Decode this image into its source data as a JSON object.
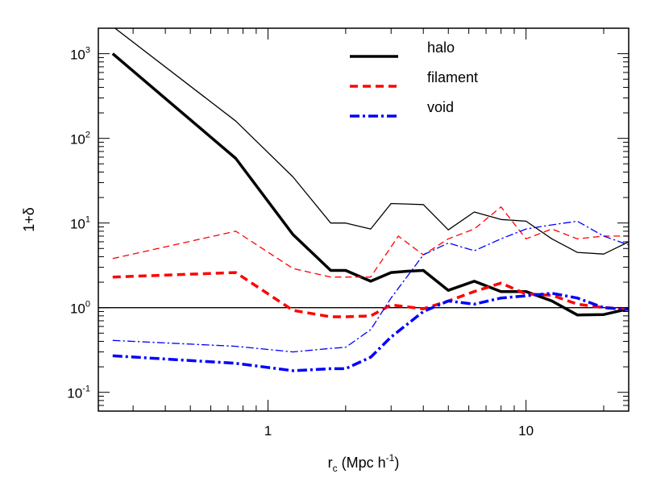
{
  "chart_data": {
    "type": "line",
    "title": "",
    "xlabel": {
      "base": "r",
      "sub": "c",
      "main": " (Mpc  h",
      "sup": "-1",
      "end": ")"
    },
    "ylabel": "1+δ",
    "xscale": "log",
    "yscale": "log",
    "xlim": [
      0.22,
      25
    ],
    "ylim": [
      0.06,
      2000
    ],
    "x_ticks": [
      {
        "value": 1,
        "label": "1"
      },
      {
        "value": 10,
        "label": "10"
      }
    ],
    "y_ticks": [
      {
        "value": 0.1,
        "base": "10",
        "exp": "-1"
      },
      {
        "value": 1,
        "base": "10",
        "exp": "0"
      },
      {
        "value": 10,
        "base": "10",
        "exp": "1"
      },
      {
        "value": 100,
        "base": "10",
        "exp": "2"
      },
      {
        "value": 1000,
        "base": "10",
        "exp": "3"
      }
    ],
    "reference_line": {
      "y": 1
    },
    "legend_position": "top-center",
    "series": [
      {
        "name": "halo",
        "style": "solid",
        "color": "#000000",
        "weight": "thick",
        "points": [
          [
            0.25,
            1000
          ],
          [
            0.75,
            58
          ],
          [
            1.25,
            7.3
          ],
          [
            1.75,
            2.75
          ],
          [
            2.0,
            2.75
          ],
          [
            2.5,
            2.05
          ],
          [
            3.0,
            2.6
          ],
          [
            3.5,
            2.7
          ],
          [
            4.0,
            2.75
          ],
          [
            5.0,
            1.6
          ],
          [
            6.3,
            2.05
          ],
          [
            8.0,
            1.55
          ],
          [
            10.0,
            1.55
          ],
          [
            12.6,
            1.2
          ],
          [
            15.8,
            0.82
          ],
          [
            20.0,
            0.83
          ],
          [
            25.0,
            0.97
          ]
        ]
      },
      {
        "name": "",
        "style": "solid",
        "color": "#000000",
        "weight": "thin",
        "points": [
          [
            0.25,
            2100
          ],
          [
            0.75,
            160
          ],
          [
            1.25,
            35
          ],
          [
            1.75,
            10
          ],
          [
            2.0,
            10
          ],
          [
            2.5,
            8.5
          ],
          [
            3.0,
            17
          ],
          [
            4.0,
            16.5
          ],
          [
            5.0,
            8.3
          ],
          [
            6.3,
            13.5
          ],
          [
            8.0,
            11
          ],
          [
            10.0,
            10.5
          ],
          [
            12.6,
            6.5
          ],
          [
            15.8,
            4.5
          ],
          [
            20.0,
            4.3
          ],
          [
            25.0,
            6
          ]
        ]
      },
      {
        "name": "filament",
        "style": "dashed",
        "color": "#ff0000",
        "weight": "thick",
        "points": [
          [
            0.25,
            2.3
          ],
          [
            0.75,
            2.6
          ],
          [
            1.25,
            0.93
          ],
          [
            1.75,
            0.78
          ],
          [
            2.0,
            0.78
          ],
          [
            2.5,
            0.8
          ],
          [
            3.0,
            1.08
          ],
          [
            4.0,
            0.97
          ],
          [
            5.0,
            1.2
          ],
          [
            6.3,
            1.55
          ],
          [
            8.0,
            1.95
          ],
          [
            10.0,
            1.45
          ],
          [
            12.6,
            1.4
          ],
          [
            15.8,
            1.1
          ],
          [
            20.0,
            1.0
          ],
          [
            25.0,
            0.97
          ]
        ]
      },
      {
        "name": "",
        "style": "dashed",
        "color": "#ff0000",
        "weight": "thin",
        "points": [
          [
            0.25,
            3.8
          ],
          [
            0.75,
            8
          ],
          [
            1.25,
            2.9
          ],
          [
            1.75,
            2.3
          ],
          [
            2.5,
            2.3
          ],
          [
            3.2,
            7
          ],
          [
            4.0,
            4.2
          ],
          [
            5.0,
            6.5
          ],
          [
            6.3,
            8.5
          ],
          [
            8.0,
            15.5
          ],
          [
            10.0,
            6.5
          ],
          [
            12.6,
            8.5
          ],
          [
            15.8,
            6.5
          ],
          [
            20.0,
            7
          ],
          [
            25.0,
            7
          ]
        ]
      },
      {
        "name": "void",
        "style": "dashdot",
        "color": "#0000ff",
        "weight": "thick",
        "points": [
          [
            0.25,
            0.27
          ],
          [
            0.75,
            0.22
          ],
          [
            1.25,
            0.18
          ],
          [
            1.75,
            0.19
          ],
          [
            2.0,
            0.19
          ],
          [
            2.5,
            0.26
          ],
          [
            3.0,
            0.45
          ],
          [
            4.0,
            0.9
          ],
          [
            5.0,
            1.2
          ],
          [
            6.3,
            1.1
          ],
          [
            8.0,
            1.3
          ],
          [
            10.0,
            1.38
          ],
          [
            12.6,
            1.48
          ],
          [
            15.8,
            1.3
          ],
          [
            20.0,
            1.0
          ],
          [
            25.0,
            0.95
          ]
        ]
      },
      {
        "name": "",
        "style": "dashdot",
        "color": "#0000ff",
        "weight": "thin",
        "points": [
          [
            0.25,
            0.41
          ],
          [
            0.75,
            0.35
          ],
          [
            1.25,
            0.3
          ],
          [
            1.75,
            0.33
          ],
          [
            2.0,
            0.34
          ],
          [
            2.5,
            0.55
          ],
          [
            3.0,
            1.3
          ],
          [
            4.0,
            4.2
          ],
          [
            5.0,
            5.8
          ],
          [
            6.3,
            4.7
          ],
          [
            8.0,
            6.5
          ],
          [
            10.0,
            8.5
          ],
          [
            12.6,
            9.5
          ],
          [
            15.8,
            10.5
          ],
          [
            20.0,
            7
          ],
          [
            25.0,
            5.5
          ]
        ]
      }
    ]
  }
}
